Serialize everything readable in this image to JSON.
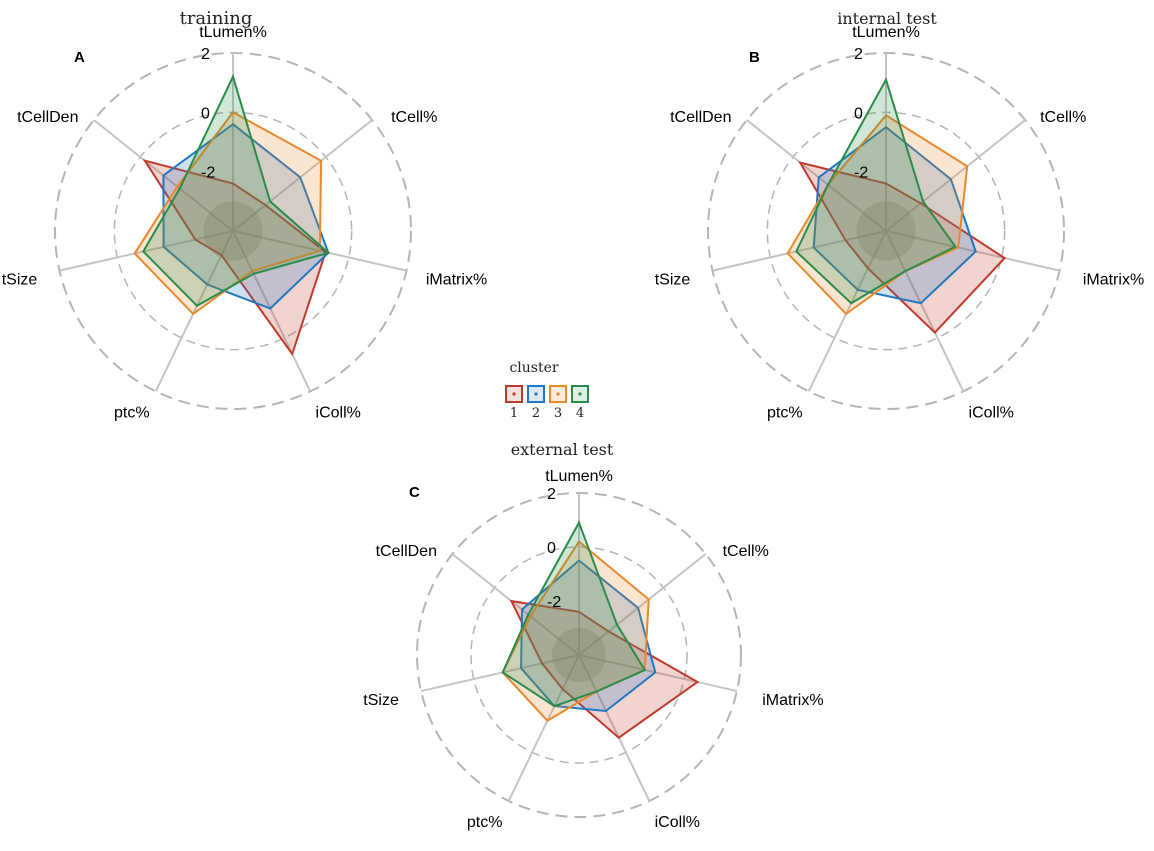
{
  "chart_data": [
    {
      "type": "radar",
      "panel": "A",
      "title": "training",
      "axes": [
        "tLumen%",
        "tCell%",
        "iMatrix%",
        "iColl%",
        "ptc%",
        "tSize",
        "tCellDen"
      ],
      "ticks": [
        "2",
        "0",
        "-2"
      ],
      "rlim": [
        -4,
        2
      ],
      "series": [
        {
          "name": "1",
          "values": [
            -2.4,
            -2.6,
            -0.8,
            0.6,
            -3.1,
            -2.7,
            -0.2
          ]
        },
        {
          "name": "2",
          "values": [
            -0.4,
            -1.1,
            -0.7,
            -1.1,
            -2.0,
            -1.6,
            -1.0
          ]
        },
        {
          "name": "3",
          "values": [
            0.0,
            -0.2,
            -1.0,
            -2.5,
            -0.9,
            -0.6,
            -1.6
          ]
        },
        {
          "name": "4",
          "values": [
            1.2,
            -2.4,
            -0.7,
            -2.4,
            -1.2,
            -0.9,
            -1.7
          ]
        }
      ]
    },
    {
      "type": "radar",
      "panel": "B",
      "title": "internal test",
      "axes": [
        "tLumen%",
        "tCell%",
        "iMatrix%",
        "iColl%",
        "ptc%",
        "tSize",
        "tCellDen"
      ],
      "ticks": [
        "2",
        "0",
        "-2"
      ],
      "rlim": [
        -4,
        2
      ],
      "series": [
        {
          "name": "1",
          "values": [
            -2.4,
            -2.5,
            0.1,
            -0.2,
            -2.6,
            -2.6,
            -0.3
          ]
        },
        {
          "name": "2",
          "values": [
            -0.5,
            -1.2,
            -0.9,
            -1.3,
            -1.8,
            -1.5,
            -1.1
          ]
        },
        {
          "name": "3",
          "values": [
            -0.1,
            -0.5,
            -1.5,
            -2.5,
            -0.9,
            -0.6,
            -1.5
          ]
        },
        {
          "name": "4",
          "values": [
            1.1,
            -2.4,
            -1.6,
            -2.5,
            -1.3,
            -0.9,
            -1.5
          ]
        }
      ]
    },
    {
      "type": "radar",
      "panel": "C",
      "title": "external test",
      "axes": [
        "tLumen%",
        "tCell%",
        "iMatrix%",
        "iColl%",
        "ptc%",
        "tSize",
        "tCellDen"
      ],
      "ticks": [
        "2",
        "0",
        "-2"
      ],
      "rlim": [
        -4,
        2
      ],
      "series": [
        {
          "name": "1",
          "values": [
            -2.4,
            -2.6,
            0.5,
            -0.6,
            -2.6,
            -2.6,
            -0.8
          ]
        },
        {
          "name": "2",
          "values": [
            -0.5,
            -1.2,
            -1.1,
            -1.7,
            -1.9,
            -1.8,
            -1.3
          ]
        },
        {
          "name": "3",
          "values": [
            0.2,
            -0.7,
            -1.5,
            -2.5,
            -1.3,
            -1.1,
            -1.7
          ]
        },
        {
          "name": "4",
          "values": [
            0.9,
            -2.2,
            -1.5,
            -2.5,
            -1.9,
            -1.1,
            -1.6
          ]
        }
      ]
    }
  ],
  "legend": {
    "title": "cluster",
    "items": [
      {
        "label": "1",
        "color": "#c0392b"
      },
      {
        "label": "2",
        "color": "#1f78c1"
      },
      {
        "label": "3",
        "color": "#e8892c"
      },
      {
        "label": "4",
        "color": "#2a8c4a"
      }
    ]
  }
}
